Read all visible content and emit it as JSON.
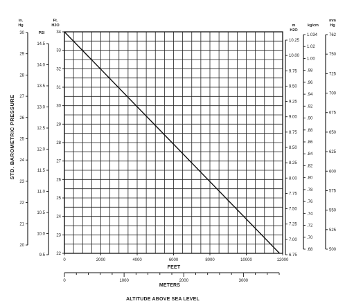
{
  "chart_data": {
    "type": "line",
    "title": "",
    "xlabel": "FEET",
    "x2label": "METERS",
    "bottom_title": "ALTITUDE ABOVE SEA LEVEL",
    "ylabel": "STD. BAROMETRIC PRESSURE",
    "xlim": [
      0,
      12000
    ],
    "ylim": [
      22,
      34
    ],
    "grid": true,
    "feet_ticks": [
      "0",
      "2000",
      "4000",
      "6000",
      "8000",
      "10000",
      "12000"
    ],
    "meters_ticks": [
      "0",
      "1000",
      "2000",
      "3000"
    ],
    "series": [
      {
        "x": [
          0,
          11830
        ],
        "y": [
          34,
          22
        ]
      }
    ],
    "left_scales": [
      {
        "unit_line1": "in.",
        "unit_line2": "Hg",
        "ticks": [
          "30",
          "29",
          "28",
          "27",
          "26",
          "25",
          "24",
          "23",
          "22",
          "21",
          "20"
        ]
      },
      {
        "unit_line1": "PSI",
        "unit_line2": "",
        "ticks": [
          "14.5",
          "14.0",
          "13.5",
          "13.0",
          "12.5",
          "12.0",
          "11.5",
          "11.0",
          "10.5",
          "10.0",
          "9.5"
        ]
      },
      {
        "unit_line1": "Ft.",
        "unit_line2": "H2O",
        "ticks": [
          "34",
          "33",
          "32",
          "31",
          "30",
          "29",
          "28",
          "27",
          "26",
          "25",
          "24",
          "23",
          "22"
        ]
      }
    ],
    "right_scales": [
      {
        "unit_line1": "m",
        "unit_line2": "H2O",
        "ticks": [
          "10.25",
          "10.00",
          "9.75",
          "9.50",
          "9.25",
          "9.00",
          "8.75",
          "8.50",
          "8.25",
          "8.00",
          "7.75",
          "7.50",
          "7.25",
          "7.00",
          "6.75"
        ]
      },
      {
        "unit_line1": "kg/cm",
        "unit_line2": "",
        "ticks": [
          "1.034",
          "1.02",
          "1.00",
          ".98",
          ".96",
          ".94",
          ".92",
          ".90",
          ".88",
          ".86",
          ".84",
          ".82",
          ".80",
          ".78",
          ".76",
          ".74",
          ".72",
          ".70",
          ".68"
        ]
      },
      {
        "unit_line1": "mm",
        "unit_line2": "Hg",
        "ticks": [
          "762",
          "750",
          "725",
          "700",
          "675",
          "650",
          "625",
          "600",
          "575",
          "550",
          "525",
          "500"
        ]
      }
    ]
  }
}
